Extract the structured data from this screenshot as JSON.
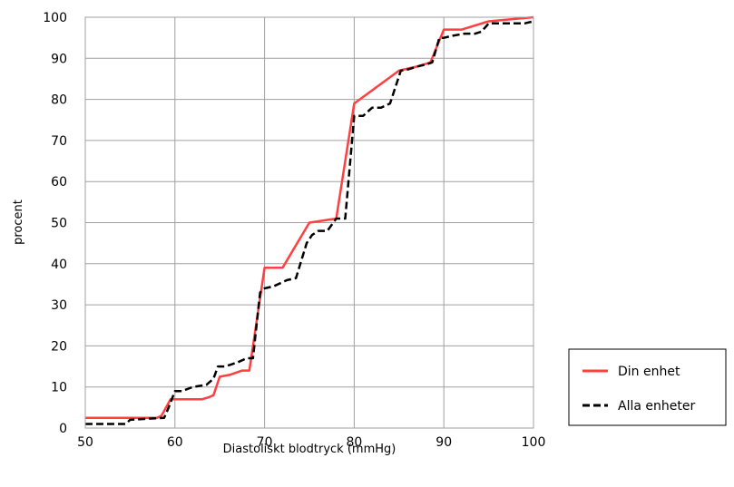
{
  "chart_data": {
    "type": "line",
    "title": "",
    "xlabel": "Diastoliskt blodtryck (mmHg)",
    "ylabel": "procent",
    "xlim": [
      50,
      100
    ],
    "ylim": [
      0,
      100
    ],
    "xticks": [
      50,
      60,
      70,
      80,
      90,
      100
    ],
    "yticks": [
      0,
      10,
      20,
      30,
      40,
      50,
      60,
      70,
      80,
      90,
      100
    ],
    "grid": true,
    "legend_position": "bottom-right",
    "series": [
      {
        "name": "Din enhet",
        "color": "#ff4040",
        "style": "solid",
        "points": [
          [
            50,
            2.5
          ],
          [
            58,
            2.5
          ],
          [
            58.5,
            3
          ],
          [
            59.5,
            7
          ],
          [
            63,
            7
          ],
          [
            63.8,
            7.5
          ],
          [
            64.3,
            8
          ],
          [
            65,
            12.5
          ],
          [
            66.2,
            13
          ],
          [
            67.5,
            14
          ],
          [
            68.3,
            14
          ],
          [
            70,
            39
          ],
          [
            72,
            39
          ],
          [
            75,
            50
          ],
          [
            78,
            51
          ],
          [
            80,
            79
          ],
          [
            85,
            87
          ],
          [
            87,
            88
          ],
          [
            88.5,
            89
          ],
          [
            90,
            97
          ],
          [
            92,
            97
          ],
          [
            95,
            99
          ],
          [
            100,
            100
          ]
        ]
      },
      {
        "name": "Alla enheter",
        "color": "#000000",
        "style": "dashed",
        "points": [
          [
            50,
            1
          ],
          [
            54.5,
            1
          ],
          [
            55,
            2
          ],
          [
            58.8,
            2.5
          ],
          [
            59.3,
            5
          ],
          [
            60,
            9
          ],
          [
            60.8,
            9
          ],
          [
            62,
            10
          ],
          [
            63.5,
            10.5
          ],
          [
            64.3,
            12
          ],
          [
            64.8,
            15
          ],
          [
            65.6,
            15
          ],
          [
            67,
            16
          ],
          [
            68,
            17
          ],
          [
            68.7,
            17
          ],
          [
            69.5,
            33
          ],
          [
            70,
            34
          ],
          [
            71,
            34.5
          ],
          [
            72.5,
            36
          ],
          [
            73.5,
            36.5
          ],
          [
            74.7,
            45
          ],
          [
            75.3,
            47
          ],
          [
            76,
            48
          ],
          [
            77,
            48
          ],
          [
            78,
            51
          ],
          [
            79,
            51
          ],
          [
            80,
            76
          ],
          [
            81,
            76
          ],
          [
            82,
            78
          ],
          [
            83,
            78
          ],
          [
            84,
            79
          ],
          [
            85.2,
            87
          ],
          [
            86,
            87.3
          ],
          [
            87,
            88
          ],
          [
            88,
            88.5
          ],
          [
            88.7,
            89
          ],
          [
            89.5,
            95
          ],
          [
            90,
            95
          ],
          [
            91,
            95.5
          ],
          [
            92.3,
            96
          ],
          [
            93.5,
            96
          ],
          [
            94.2,
            96.5
          ],
          [
            95,
            98.5
          ],
          [
            96,
            98.5
          ],
          [
            97,
            98.5
          ],
          [
            98,
            98.5
          ],
          [
            99,
            98.5
          ],
          [
            100,
            99
          ]
        ]
      }
    ]
  }
}
